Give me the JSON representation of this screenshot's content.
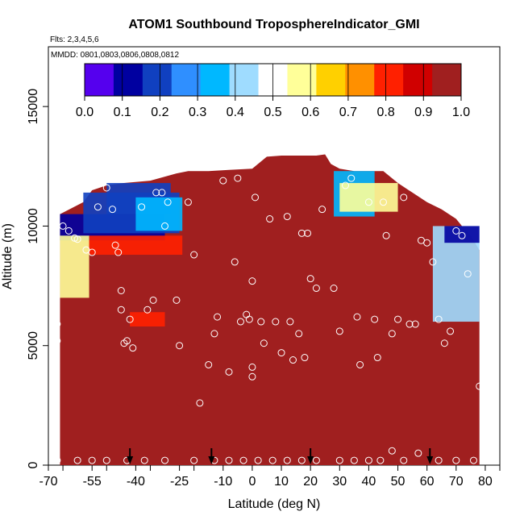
{
  "chart_data": {
    "type": "heatmap",
    "title": "ATOM1 Southbound TroposphereIndicator_GMI",
    "subtitle_flights": "Flts: 2,3,4,5,6",
    "subtitle_dates": "MMDD: 0801,0803,0806,0808,0812",
    "xlabel": "Latitude (deg N)",
    "ylabel": "Altitude (m)",
    "xlim": [
      -70,
      85
    ],
    "ylim": [
      0,
      17500
    ],
    "x_ticks": [
      -70,
      -55,
      -40,
      -25,
      -10,
      0,
      10,
      20,
      30,
      40,
      50,
      60,
      70,
      80
    ],
    "x_tick_labels": [
      "-70",
      "-55",
      "-40",
      "-25",
      "-10",
      "0",
      "10",
      "20",
      "30",
      "40",
      "50",
      "60",
      "70",
      "80"
    ],
    "y_ticks": [
      0,
      5000,
      10000,
      15000
    ],
    "y_tick_labels": [
      "0",
      "5000",
      "10000",
      "15000"
    ],
    "colorbar": {
      "min": 0.0,
      "max": 1.0,
      "tick_labels": [
        "0.0",
        "0.1",
        "0.2",
        "0.3",
        "0.4",
        "0.5",
        "0.6",
        "0.7",
        "0.8",
        "0.9",
        "1.0"
      ],
      "colors": [
        "#5500ee",
        "#0000a0",
        "#1040c0",
        "#2f8fff",
        "#00b8ff",
        "#9fdcff",
        "#ffffff",
        "#ffff99",
        "#ffd000",
        "#ff9000",
        "#ff2000",
        "#d00000",
        "#a01f1f"
      ]
    },
    "top_altitude_profile": [
      [
        -66,
        10500
      ],
      [
        -58,
        11000
      ],
      [
        -55,
        11500
      ],
      [
        -50,
        11700
      ],
      [
        -44,
        11800
      ],
      [
        -35,
        11900
      ],
      [
        -26,
        12200
      ],
      [
        -22,
        12300
      ],
      [
        -15,
        12300
      ],
      [
        -8,
        12350
      ],
      [
        0,
        12400
      ],
      [
        5,
        12900
      ],
      [
        10,
        12950
      ],
      [
        18,
        12950
      ],
      [
        22,
        12950
      ],
      [
        25,
        13000
      ],
      [
        27,
        12600
      ],
      [
        30,
        12400
      ],
      [
        35,
        12300
      ],
      [
        40,
        12300
      ],
      [
        45,
        12300
      ],
      [
        50,
        11800
      ],
      [
        55,
        11400
      ],
      [
        60,
        11000
      ],
      [
        65,
        10700
      ],
      [
        70,
        10300
      ],
      [
        72,
        10000
      ],
      [
        75,
        9600
      ],
      [
        78,
        9000
      ]
    ],
    "background_value": 1.0,
    "features": [
      {
        "x0": -66,
        "x1": -30,
        "y0": 9400,
        "y1": 10500,
        "value": 0.05
      },
      {
        "x0": -58,
        "x1": -25,
        "y0": 9700,
        "y1": 11400,
        "value": 0.15
      },
      {
        "x0": -50,
        "x1": -28,
        "y0": 10500,
        "y1": 11800,
        "value": 0.2
      },
      {
        "x0": -40,
        "x1": -24,
        "y0": 9800,
        "y1": 11200,
        "value": 0.35
      },
      {
        "x0": -56,
        "x1": -24,
        "y0": 8800,
        "y1": 9600,
        "value": 0.8
      },
      {
        "x0": -66,
        "x1": -56,
        "y0": 7000,
        "y1": 9600,
        "value": 0.55
      },
      {
        "x0": -42,
        "x1": -30,
        "y0": 5800,
        "y1": 6400,
        "value": 0.85
      },
      {
        "x0": 28,
        "x1": 42,
        "y0": 10400,
        "y1": 12300,
        "value": 0.3
      },
      {
        "x0": 30,
        "x1": 50,
        "y0": 10600,
        "y1": 11800,
        "value": 0.6
      },
      {
        "x0": 62,
        "x1": 78,
        "y0": 6000,
        "y1": 10000,
        "value": 0.45
      },
      {
        "x0": 66,
        "x1": 78,
        "y0": 9300,
        "y1": 10000,
        "value": 0.05
      }
    ],
    "sample_points": [
      [
        -67,
        5900
      ],
      [
        -67,
        5200
      ],
      [
        -65,
        10000
      ],
      [
        -63,
        9800
      ],
      [
        -61,
        9500
      ],
      [
        -60,
        9450
      ],
      [
        -57,
        9000
      ],
      [
        -55,
        8900
      ],
      [
        -53,
        10800
      ],
      [
        -50,
        11600
      ],
      [
        -48,
        10700
      ],
      [
        -47,
        9200
      ],
      [
        -46,
        8900
      ],
      [
        -45,
        7300
      ],
      [
        -45,
        6500
      ],
      [
        -44,
        5100
      ],
      [
        -43,
        5200
      ],
      [
        -42,
        6100
      ],
      [
        -41,
        4900
      ],
      [
        -38,
        10800
      ],
      [
        -36,
        6500
      ],
      [
        -34,
        6900
      ],
      [
        -33,
        11400
      ],
      [
        -31,
        11400
      ],
      [
        -30,
        10000
      ],
      [
        -29,
        11000
      ],
      [
        -26,
        6900
      ],
      [
        -25,
        5000
      ],
      [
        -22,
        11000
      ],
      [
        -20,
        8800
      ],
      [
        -18,
        2600
      ],
      [
        -15,
        4200
      ],
      [
        -13,
        5500
      ],
      [
        -12,
        6200
      ],
      [
        -10,
        11900
      ],
      [
        -8,
        3900
      ],
      [
        -6,
        8500
      ],
      [
        -5,
        12000
      ],
      [
        -4,
        6000
      ],
      [
        -2,
        6300
      ],
      [
        -1,
        6100
      ],
      [
        0,
        7700
      ],
      [
        0,
        4100
      ],
      [
        0,
        3700
      ],
      [
        1,
        11200
      ],
      [
        3,
        6000
      ],
      [
        4,
        5100
      ],
      [
        6,
        10300
      ],
      [
        8,
        6000
      ],
      [
        10,
        4700
      ],
      [
        12,
        10400
      ],
      [
        13,
        6000
      ],
      [
        14,
        4400
      ],
      [
        16,
        5500
      ],
      [
        17,
        9700
      ],
      [
        18,
        4500
      ],
      [
        19,
        9700
      ],
      [
        20,
        7800
      ],
      [
        22,
        7400
      ],
      [
        24,
        10700
      ],
      [
        26,
        13100
      ],
      [
        28,
        7400
      ],
      [
        30,
        5600
      ],
      [
        32,
        11700
      ],
      [
        34,
        12000
      ],
      [
        36,
        6200
      ],
      [
        37,
        4200
      ],
      [
        40,
        11000
      ],
      [
        42,
        6100
      ],
      [
        43,
        4500
      ],
      [
        45,
        11000
      ],
      [
        46,
        9600
      ],
      [
        48,
        5500
      ],
      [
        50,
        6100
      ],
      [
        52,
        11200
      ],
      [
        54,
        5900
      ],
      [
        56,
        5900
      ],
      [
        58,
        9400
      ],
      [
        60,
        9300
      ],
      [
        62,
        8500
      ],
      [
        64,
        6100
      ],
      [
        66,
        5100
      ],
      [
        68,
        5600
      ],
      [
        70,
        9800
      ],
      [
        72,
        9600
      ],
      [
        74,
        8000
      ],
      [
        78,
        3300
      ],
      [
        -67,
        200
      ],
      [
        -60,
        200
      ],
      [
        -55,
        200
      ],
      [
        -50,
        200
      ],
      [
        -43,
        200
      ],
      [
        -37,
        200
      ],
      [
        -30,
        200
      ],
      [
        -20,
        200
      ],
      [
        -13,
        200
      ],
      [
        -8,
        200
      ],
      [
        -3,
        200
      ],
      [
        2,
        200
      ],
      [
        7,
        200
      ],
      [
        12,
        200
      ],
      [
        17,
        200
      ],
      [
        22,
        200
      ],
      [
        30,
        200
      ],
      [
        35,
        200
      ],
      [
        40,
        200
      ],
      [
        44,
        200
      ],
      [
        48,
        600
      ],
      [
        52,
        200
      ],
      [
        57,
        500
      ],
      [
        64,
        200
      ],
      [
        70,
        200
      ],
      [
        76,
        200
      ]
    ],
    "arrows_latitude": [
      -42,
      -14,
      20,
      61
    ]
  }
}
